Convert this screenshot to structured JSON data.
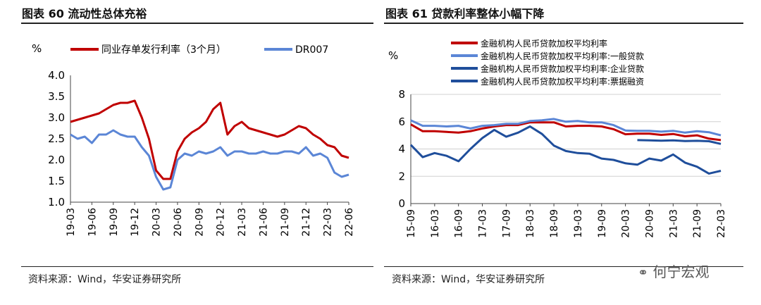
{
  "left": {
    "title": "图表 60  流动性总体充裕",
    "source": "资料来源：Wind，华安证券研究所"
  },
  "right": {
    "title": "图表 61  贷款利率整体小幅下降",
    "source": "资料来源：Wind，华安证券研究所"
  },
  "watermark": "何宁宏观",
  "colors": {
    "red": "#c00000",
    "lightblue": "#5b86d6",
    "navy": "#1f4e9b",
    "grid": "#d0d0d0"
  },
  "chart_data": [
    {
      "type": "line",
      "ylabel": "%",
      "ylim": [
        1.0,
        4.0
      ],
      "yticks": [
        "4.0",
        "3.5",
        "3.0",
        "2.5",
        "2.0",
        "1.5",
        "1.0"
      ],
      "x_ticks": [
        "19-03",
        "19-06",
        "19-09",
        "19-12",
        "20-03",
        "20-06",
        "20-09",
        "20-12",
        "21-03",
        "21-06",
        "21-09",
        "21-12",
        "22-03",
        "22-06"
      ],
      "series": [
        {
          "name": "同业存单发行利率（3个月）",
          "color": "#c00000",
          "x": [
            "19-03",
            "19-04",
            "19-05",
            "19-06",
            "19-07",
            "19-08",
            "19-09",
            "19-10",
            "19-11",
            "19-12",
            "20-01",
            "20-02",
            "20-03",
            "20-04",
            "20-05",
            "20-06",
            "20-07",
            "20-08",
            "20-09",
            "20-10",
            "20-11",
            "20-12",
            "21-01",
            "21-02",
            "21-03",
            "21-04",
            "21-05",
            "21-06",
            "21-07",
            "21-08",
            "21-09",
            "21-10",
            "21-11",
            "21-12",
            "22-01",
            "22-02",
            "22-03",
            "22-04",
            "22-05",
            "22-06"
          ],
          "values": [
            2.9,
            2.95,
            3.0,
            3.05,
            3.1,
            3.2,
            3.3,
            3.35,
            3.35,
            3.4,
            3.0,
            2.5,
            1.75,
            1.55,
            1.55,
            2.2,
            2.5,
            2.65,
            2.75,
            2.9,
            3.2,
            3.35,
            2.6,
            2.8,
            2.9,
            2.75,
            2.7,
            2.65,
            2.6,
            2.55,
            2.6,
            2.7,
            2.8,
            2.75,
            2.6,
            2.5,
            2.35,
            2.3,
            2.1,
            2.05
          ]
        },
        {
          "name": "DR007",
          "color": "#5b86d6",
          "x": [
            "19-03",
            "19-04",
            "19-05",
            "19-06",
            "19-07",
            "19-08",
            "19-09",
            "19-10",
            "19-11",
            "19-12",
            "20-01",
            "20-02",
            "20-03",
            "20-04",
            "20-05",
            "20-06",
            "20-07",
            "20-08",
            "20-09",
            "20-10",
            "20-11",
            "20-12",
            "21-01",
            "21-02",
            "21-03",
            "21-04",
            "21-05",
            "21-06",
            "21-07",
            "21-08",
            "21-09",
            "21-10",
            "21-11",
            "21-12",
            "22-01",
            "22-02",
            "22-03",
            "22-04",
            "22-05",
            "22-06"
          ],
          "values": [
            2.6,
            2.5,
            2.55,
            2.4,
            2.6,
            2.6,
            2.7,
            2.6,
            2.55,
            2.55,
            2.3,
            2.1,
            1.6,
            1.3,
            1.35,
            2.0,
            2.15,
            2.1,
            2.2,
            2.15,
            2.2,
            2.3,
            2.1,
            2.2,
            2.2,
            2.15,
            2.15,
            2.2,
            2.15,
            2.15,
            2.2,
            2.2,
            2.15,
            2.3,
            2.1,
            2.15,
            2.05,
            1.7,
            1.6,
            1.65
          ]
        }
      ]
    },
    {
      "type": "line",
      "ylabel": "%",
      "ylim": [
        0,
        8
      ],
      "yticks": [
        "8",
        "6",
        "4",
        "2",
        "0"
      ],
      "x_ticks": [
        "15-09",
        "16-03",
        "16-09",
        "17-03",
        "17-09",
        "18-03",
        "18-09",
        "19-03",
        "19-09",
        "20-03",
        "20-09",
        "21-03",
        "21-09",
        "22-03"
      ],
      "series": [
        {
          "name": "金融机构人民币贷款加权平均利率",
          "color": "#c00000",
          "x": [
            "15-09",
            "15-12",
            "16-03",
            "16-06",
            "16-09",
            "16-12",
            "17-03",
            "17-06",
            "17-09",
            "17-12",
            "18-03",
            "18-06",
            "18-09",
            "18-12",
            "19-03",
            "19-06",
            "19-09",
            "19-12",
            "20-03",
            "20-06",
            "20-09",
            "20-12",
            "21-03",
            "21-06",
            "21-09",
            "21-12",
            "22-03"
          ],
          "values": [
            5.8,
            5.3,
            5.3,
            5.25,
            5.2,
            5.3,
            5.5,
            5.65,
            5.75,
            5.75,
            5.95,
            5.95,
            5.95,
            5.65,
            5.7,
            5.7,
            5.65,
            5.45,
            5.08,
            5.12,
            5.12,
            5.03,
            5.1,
            4.93,
            5.0,
            4.76,
            4.65
          ]
        },
        {
          "name": "金融机构人民币贷款加权平均利率:一般贷款",
          "color": "#5b86d6",
          "x": [
            "15-09",
            "15-12",
            "16-03",
            "16-06",
            "16-09",
            "16-12",
            "17-03",
            "17-06",
            "17-09",
            "17-12",
            "18-03",
            "18-06",
            "18-09",
            "18-12",
            "19-03",
            "19-06",
            "19-09",
            "19-12",
            "20-03",
            "20-06",
            "20-09",
            "20-12",
            "21-03",
            "21-06",
            "21-09",
            "21-12",
            "22-03"
          ],
          "values": [
            6.1,
            5.7,
            5.7,
            5.65,
            5.7,
            5.5,
            5.7,
            5.75,
            5.85,
            5.85,
            6.05,
            6.1,
            6.2,
            6.0,
            6.05,
            5.95,
            5.95,
            5.75,
            5.35,
            5.33,
            5.33,
            5.27,
            5.33,
            5.2,
            5.3,
            5.23,
            5.0
          ]
        },
        {
          "name": "金融机构人民币贷款加权平均利率:企业贷款",
          "color": "#1f4e9b",
          "x": [
            "20-06",
            "20-09",
            "20-12",
            "21-03",
            "21-06",
            "21-09",
            "21-12",
            "22-03"
          ],
          "values": [
            4.65,
            4.63,
            4.61,
            4.63,
            4.58,
            4.6,
            4.57,
            4.37
          ]
        },
        {
          "name": "金融机构人民币贷款加权平均利率:票据融资",
          "color": "#1f4e9b",
          "x": [
            "15-09",
            "15-12",
            "16-03",
            "16-06",
            "16-09",
            "16-12",
            "17-03",
            "17-06",
            "17-09",
            "17-12",
            "18-03",
            "18-06",
            "18-09",
            "18-12",
            "19-03",
            "19-06",
            "19-09",
            "19-12",
            "20-03",
            "20-06",
            "20-09",
            "20-12",
            "21-03",
            "21-06",
            "21-09",
            "21-12",
            "22-03"
          ],
          "values": [
            4.3,
            3.4,
            3.7,
            3.5,
            3.1,
            4.0,
            4.8,
            5.4,
            4.9,
            5.2,
            5.65,
            5.1,
            4.25,
            3.85,
            3.7,
            3.65,
            3.3,
            3.2,
            2.95,
            2.85,
            3.3,
            3.15,
            3.6,
            3.0,
            2.7,
            2.2,
            2.4
          ]
        }
      ]
    }
  ]
}
